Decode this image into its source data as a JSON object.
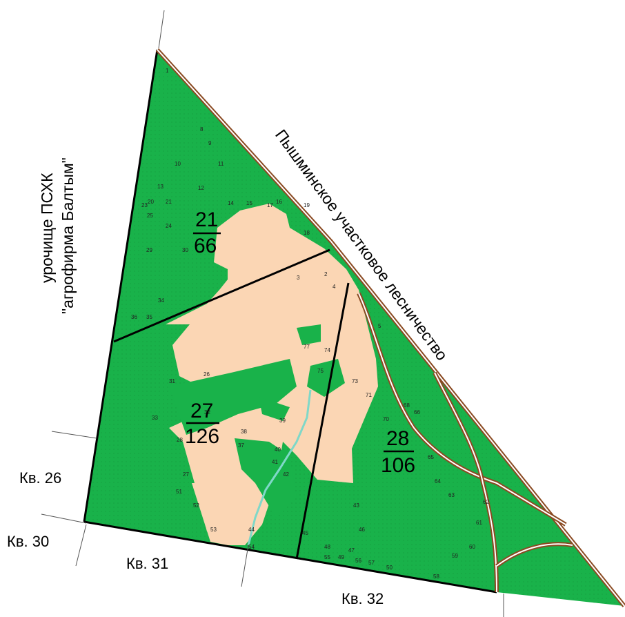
{
  "colors": {
    "forest": "#19b24a",
    "clearing": "#fbd6b4",
    "road": "#8a4a22",
    "road_inner": "#ffffff",
    "boundary": "#000000",
    "stream": "#7fd8c8",
    "contour": "#3b6e3b"
  },
  "labels": {
    "left_area_line1": "урочище ПСХК",
    "left_area_line2": "\"агрофирма Балтым\"",
    "right_area": "Пышминское участковое лесничество",
    "kv26": "Кв. 26",
    "kv30": "Кв. 30",
    "kv31": "Кв. 31",
    "kv32": "Кв. 32"
  },
  "quarters": [
    {
      "id": "q21",
      "number": "21",
      "area": "66"
    },
    {
      "id": "q27",
      "number": "27",
      "area": "126"
    },
    {
      "id": "q28",
      "number": "28",
      "area": "106"
    }
  ],
  "plot_numbers": [
    "1",
    "2",
    "3",
    "4",
    "5",
    "8",
    "9",
    "10",
    "11",
    "12",
    "13",
    "14",
    "15",
    "16",
    "17",
    "18",
    "19",
    "20",
    "21",
    "23",
    "24",
    "25",
    "26",
    "27",
    "28",
    "29",
    "30",
    "31",
    "32",
    "33",
    "34",
    "35",
    "36",
    "37",
    "38",
    "39",
    "40",
    "41",
    "42",
    "43",
    "44",
    "45",
    "46",
    "47",
    "48",
    "49",
    "50",
    "51",
    "52",
    "53",
    "54",
    "55",
    "56",
    "57",
    "58",
    "59",
    "60",
    "61",
    "62",
    "63",
    "64",
    "65",
    "66",
    "68",
    "70",
    "71",
    "73",
    "74",
    "75",
    "77"
  ]
}
